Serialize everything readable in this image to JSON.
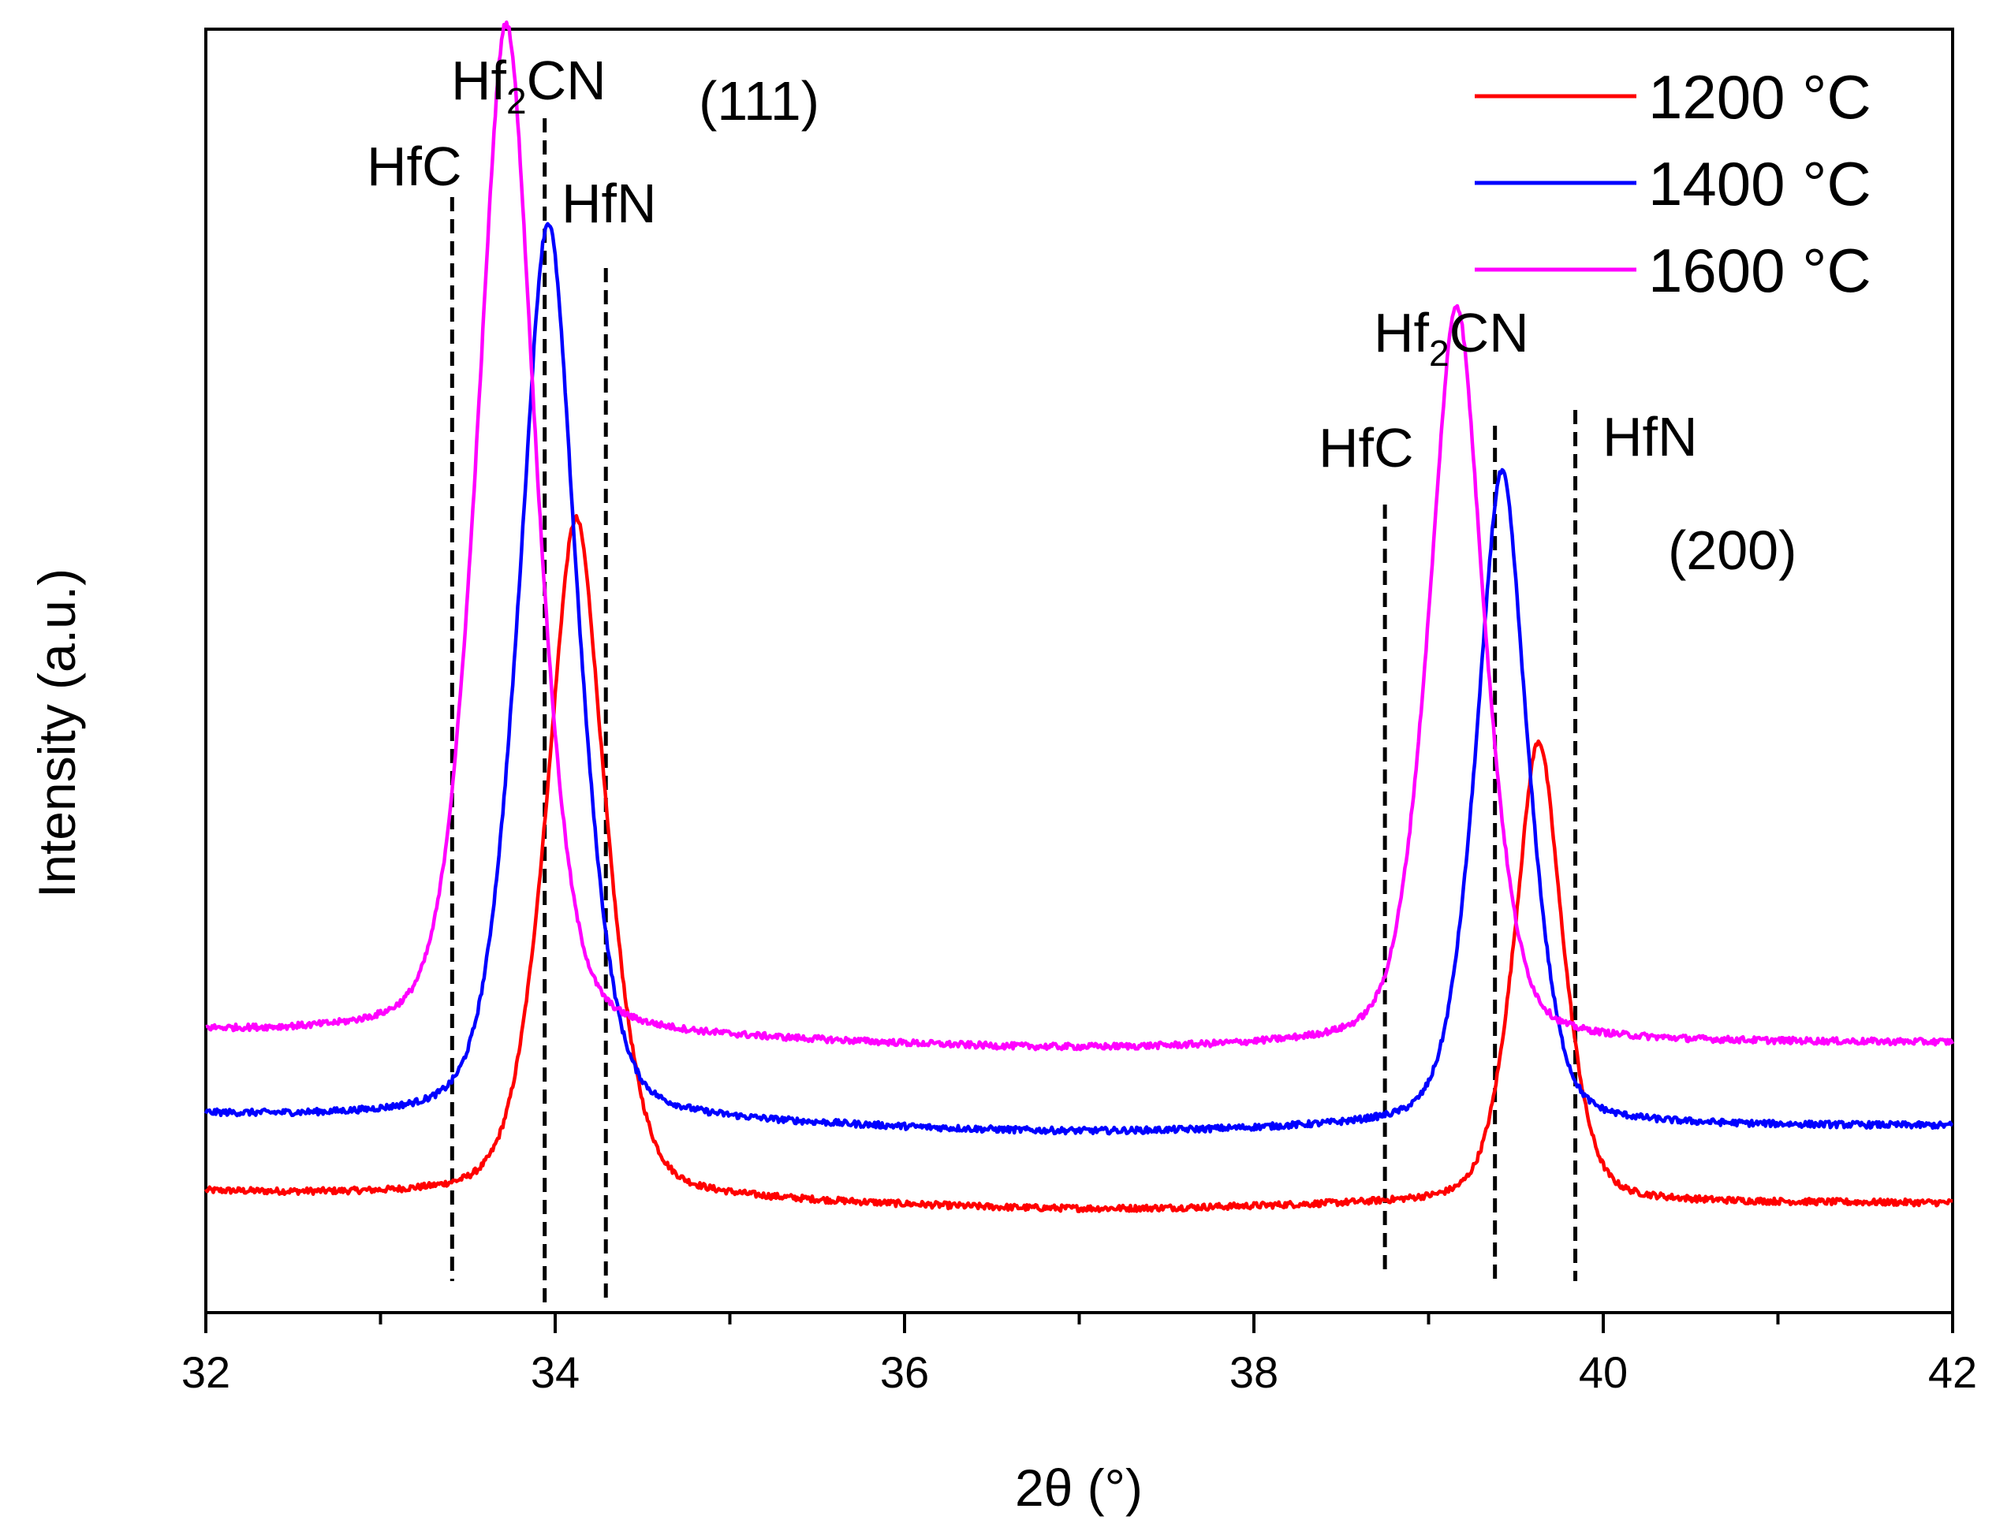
{
  "chart_data": {
    "type": "line",
    "title": "",
    "xlabel": "2θ (°)",
    "ylabel": "Intensity (a.u.)",
    "xlim": [
      32,
      42
    ],
    "ylim": [
      0,
      100
    ],
    "xticks": [
      32,
      34,
      36,
      38,
      40,
      42
    ],
    "xtick_labels": [
      "32",
      "34",
      "36",
      "38",
      "40",
      "42"
    ],
    "minor_xticks": [
      33,
      35,
      37,
      39,
      41
    ],
    "y_axis_ticks": "none",
    "legend": {
      "position": "top-right",
      "entries": [
        "1200 °C",
        "1400 °C",
        "1600 °C"
      ]
    },
    "series": [
      {
        "name": "1200 °C",
        "color": "#ff0000",
        "baseline": 8.5,
        "peaks": [
          {
            "center": 34.12,
            "height": 53.0,
            "width": 0.16
          },
          {
            "center": 39.63,
            "height": 36.0,
            "width": 0.13
          }
        ],
        "noise": 0.25
      },
      {
        "name": "1400 °C",
        "color": "#0000ff",
        "baseline": 14.5,
        "peaks": [
          {
            "center": 33.96,
            "height": 70.0,
            "width": 0.16
          },
          {
            "center": 39.42,
            "height": 51.0,
            "width": 0.14
          }
        ],
        "noise": 0.25
      },
      {
        "name": "1600 °C",
        "color": "#ff00ff",
        "baseline": 21.0,
        "peaks": [
          {
            "center": 33.72,
            "height": 79.0,
            "width": 0.16
          },
          {
            "center": 39.16,
            "height": 57.5,
            "width": 0.15
          }
        ],
        "noise": 0.25
      }
    ],
    "reference_lines": [
      {
        "label": "HfC",
        "x": 33.41
      },
      {
        "label": "Hf2CN",
        "x": 33.94
      },
      {
        "label": "HfN",
        "x": 34.29
      },
      {
        "label": "HfC",
        "x": 38.75
      },
      {
        "label": "Hf2CN",
        "x": 39.38
      },
      {
        "label": "HfN",
        "x": 39.84
      }
    ],
    "annotations": {
      "hfc_left": "HfC",
      "hf2cn_left_a": "Hf",
      "hf2cn_left_sub": "2",
      "hf2cn_left_b": "CN",
      "hfn_left": "HfN",
      "plane_111": "(111)",
      "hfc_right": "HfC",
      "hf2cn_right_a": "Hf",
      "hf2cn_right_sub": "2",
      "hf2cn_right_b": "CN",
      "hfn_right": "HfN",
      "plane_200": "(200)"
    }
  }
}
